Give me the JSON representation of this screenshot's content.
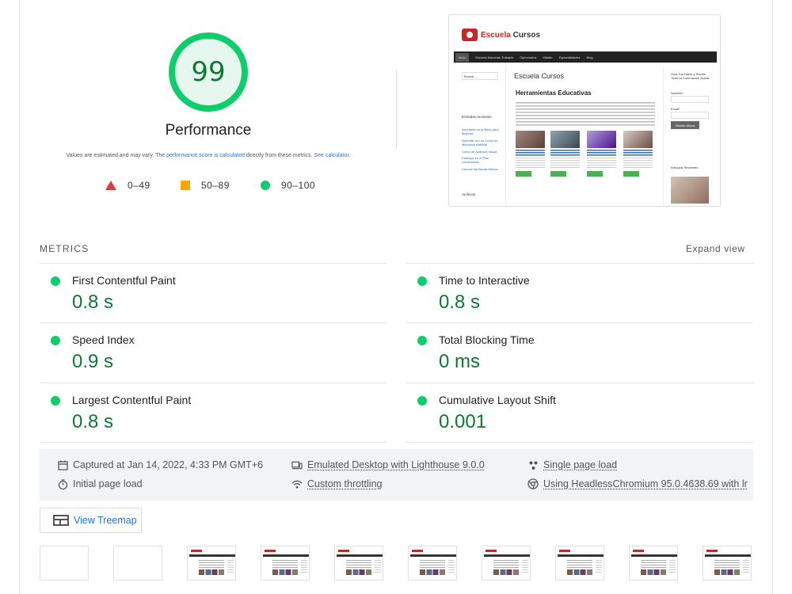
{
  "score": {
    "value": "99",
    "fraction": 0.99,
    "color": "#0cce6b",
    "label": "Performance"
  },
  "disclaimer": {
    "prefix": "Values are estimated and may vary. The ",
    "link1": "performance score is calculated",
    "middle": " directly from these metrics. ",
    "link2": "See calculator."
  },
  "legend": [
    {
      "shape": "triangle",
      "color": "#e53935",
      "range": "0–49"
    },
    {
      "shape": "square",
      "color": "#ffa400",
      "range": "50–89"
    },
    {
      "shape": "circle",
      "color": "#0cce6b",
      "range": "90–100"
    }
  ],
  "screenshot": {
    "logo_word1": "Escuela",
    "logo_word2": " Cursos",
    "nav": [
      "Inicio",
      "Escuela Manchas Trabajos",
      "Diplomados",
      "Master",
      "Especialidades",
      "Blog"
    ],
    "search_placeholder": "Buscar...",
    "left_sidebar_heading": "Entradas recientes",
    "left_sidebar_links": [
      "Inscríbete en la Beca para Mujeres",
      "Aprende con un Curso de Mecánica Artificial",
      "Curso de Audición Visual",
      "Participa en el Plan Universitario",
      "Conoce las Becas México"
    ],
    "left_sidebar_archive": "Archivos",
    "main_heading": "Escuela Cursos",
    "main_subheading": "Herramientas Educativas",
    "right_form_title": "Hola Tus Datos y Recibe Toda La Información Actual",
    "right_form_name": "Nombre*",
    "right_form_email": "Email*",
    "right_form_button": "Recibir Ahora",
    "right_recent": "Artículos Recientes"
  },
  "metrics": {
    "heading": "METRICS",
    "expand": "Expand view",
    "items": [
      {
        "name": "First Contentful Paint",
        "value": "0.8 s"
      },
      {
        "name": "Time to Interactive",
        "value": "0.8 s"
      },
      {
        "name": "Speed Index",
        "value": "0.9 s"
      },
      {
        "name": "Total Blocking Time",
        "value": "0 ms"
      },
      {
        "name": "Largest Contentful Paint",
        "value": "0.8 s"
      },
      {
        "name": "Cumulative Layout Shift",
        "value": "0.001"
      }
    ]
  },
  "info": {
    "captured": "Captured at Jan 14, 2022, 4:33 PM GMT+6",
    "initial": "Initial page load",
    "emulated": "Emulated Desktop with Lighthouse 9.0.0",
    "throttling": "Custom throttling",
    "single": "Single page load",
    "browser": "Using HeadlessChromium 95.0.4638.69 with lr"
  },
  "treemap": {
    "label": "View Treemap"
  }
}
